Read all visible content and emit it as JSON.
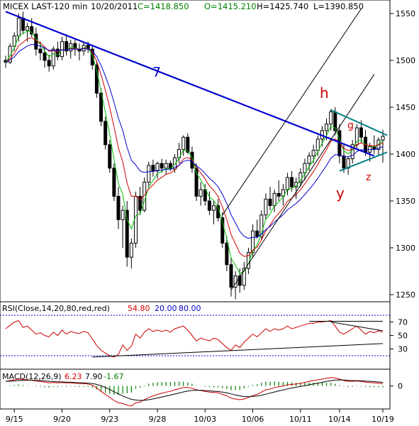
{
  "chart_data": {
    "type": "candlestick",
    "header": {
      "symbol": "MICEX LAST-120 min",
      "date": "10/20/2011",
      "close": "C=1418.850",
      "open": "O=1415.210",
      "high": "H=1425.740",
      "low": "L=1390.850"
    },
    "price_axis": {
      "ticks": [
        "1550",
        "1500",
        "1450",
        "1400",
        "1350",
        "1300",
        "1250"
      ],
      "ylim": [
        1238,
        1562
      ]
    },
    "x_ticks": [
      "9/15",
      "9/20",
      "9/23",
      "9/28",
      "10/03",
      "10/06",
      "10/11",
      "10/14",
      "10/19"
    ],
    "annotations": [
      "7",
      "h",
      "g",
      "y",
      "z"
    ],
    "colors": {
      "bull": "#000000",
      "bear": "#000000",
      "trend": "#0000d0",
      "ma_fast": "#00c000",
      "ma_mid": "#d00000",
      "ma_slow": "#0000d0",
      "triangle": "#008080",
      "label": "#d00000"
    },
    "candles": [
      [
        1500,
        1505,
        1492,
        1498
      ],
      [
        1498,
        1518,
        1496,
        1515
      ],
      [
        1515,
        1530,
        1510,
        1526
      ],
      [
        1526,
        1550,
        1520,
        1545
      ],
      [
        1545,
        1552,
        1528,
        1532
      ],
      [
        1532,
        1540,
        1520,
        1536
      ],
      [
        1536,
        1545,
        1525,
        1528
      ],
      [
        1528,
        1535,
        1505,
        1512
      ],
      [
        1512,
        1520,
        1500,
        1508
      ],
      [
        1508,
        1515,
        1492,
        1500
      ],
      [
        1500,
        1506,
        1488,
        1494
      ],
      [
        1494,
        1515,
        1490,
        1512
      ],
      [
        1512,
        1520,
        1500,
        1504
      ],
      [
        1504,
        1525,
        1500,
        1520
      ],
      [
        1520,
        1528,
        1505,
        1510
      ],
      [
        1510,
        1522,
        1502,
        1518
      ],
      [
        1518,
        1522,
        1505,
        1512
      ],
      [
        1512,
        1518,
        1500,
        1510
      ],
      [
        1510,
        1520,
        1505,
        1516
      ],
      [
        1516,
        1520,
        1508,
        1512
      ],
      [
        1512,
        1516,
        1490,
        1495
      ],
      [
        1495,
        1500,
        1460,
        1465
      ],
      [
        1465,
        1470,
        1430,
        1435
      ],
      [
        1435,
        1440,
        1405,
        1410
      ],
      [
        1410,
        1415,
        1380,
        1385
      ],
      [
        1385,
        1390,
        1350,
        1355
      ],
      [
        1355,
        1365,
        1320,
        1330
      ],
      [
        1330,
        1345,
        1300,
        1340
      ],
      [
        1340,
        1350,
        1280,
        1290
      ],
      [
        1290,
        1310,
        1278,
        1305
      ],
      [
        1305,
        1360,
        1300,
        1355
      ],
      [
        1355,
        1365,
        1335,
        1340
      ],
      [
        1340,
        1375,
        1338,
        1370
      ],
      [
        1370,
        1392,
        1365,
        1388
      ],
      [
        1388,
        1394,
        1376,
        1382
      ],
      [
        1382,
        1392,
        1374,
        1390
      ],
      [
        1390,
        1395,
        1380,
        1385
      ],
      [
        1385,
        1394,
        1378,
        1390
      ],
      [
        1390,
        1393,
        1382,
        1384
      ],
      [
        1384,
        1400,
        1380,
        1396
      ],
      [
        1396,
        1412,
        1390,
        1405
      ],
      [
        1405,
        1420,
        1398,
        1418
      ],
      [
        1418,
        1422,
        1400,
        1402
      ],
      [
        1402,
        1408,
        1380,
        1385
      ],
      [
        1385,
        1390,
        1350,
        1355
      ],
      [
        1355,
        1370,
        1345,
        1362
      ],
      [
        1362,
        1368,
        1345,
        1350
      ],
      [
        1350,
        1360,
        1335,
        1340
      ],
      [
        1340,
        1350,
        1325,
        1345
      ],
      [
        1345,
        1352,
        1328,
        1332
      ],
      [
        1332,
        1338,
        1300,
        1305
      ],
      [
        1305,
        1312,
        1275,
        1282
      ],
      [
        1282,
        1290,
        1248,
        1258
      ],
      [
        1258,
        1275,
        1245,
        1270
      ],
      [
        1270,
        1278,
        1252,
        1260
      ],
      [
        1260,
        1285,
        1255,
        1278
      ],
      [
        1278,
        1300,
        1272,
        1295
      ],
      [
        1295,
        1325,
        1290,
        1318
      ],
      [
        1318,
        1330,
        1310,
        1312
      ],
      [
        1312,
        1340,
        1308,
        1335
      ],
      [
        1335,
        1358,
        1330,
        1352
      ],
      [
        1352,
        1365,
        1340,
        1345
      ],
      [
        1345,
        1362,
        1338,
        1358
      ],
      [
        1358,
        1372,
        1350,
        1355
      ],
      [
        1355,
        1368,
        1345,
        1362
      ],
      [
        1362,
        1380,
        1356,
        1375
      ],
      [
        1375,
        1382,
        1360,
        1365
      ],
      [
        1365,
        1375,
        1352,
        1370
      ],
      [
        1370,
        1385,
        1365,
        1380
      ],
      [
        1380,
        1395,
        1372,
        1390
      ],
      [
        1390,
        1402,
        1382,
        1398
      ],
      [
        1398,
        1410,
        1390,
        1404
      ],
      [
        1404,
        1420,
        1398,
        1416
      ],
      [
        1416,
        1430,
        1408,
        1425
      ],
      [
        1425,
        1438,
        1415,
        1432
      ],
      [
        1432,
        1448,
        1425,
        1445
      ],
      [
        1445,
        1450,
        1420,
        1425
      ],
      [
        1425,
        1432,
        1390,
        1398
      ],
      [
        1398,
        1410,
        1380,
        1385
      ],
      [
        1385,
        1398,
        1378,
        1395
      ],
      [
        1395,
        1415,
        1390,
        1410
      ],
      [
        1410,
        1432,
        1405,
        1428
      ],
      [
        1428,
        1436,
        1412,
        1418
      ],
      [
        1418,
        1426,
        1398,
        1402
      ],
      [
        1402,
        1412,
        1392,
        1408
      ],
      [
        1408,
        1420,
        1400,
        1405
      ],
      [
        1405,
        1418,
        1398,
        1415
      ],
      [
        1415,
        1426,
        1391,
        1419
      ]
    ],
    "rsi": {
      "label": "RSI(Close,14,20,80,red,red)",
      "value": "54.80",
      "lower": "20.00",
      "upper": "80.00",
      "ticks": [
        "70",
        "50",
        "30"
      ],
      "ylim": [
        0,
        100
      ],
      "values": [
        60,
        65,
        70,
        72,
        62,
        64,
        58,
        52,
        54,
        50,
        48,
        55,
        50,
        58,
        52,
        56,
        54,
        53,
        56,
        54,
        45,
        35,
        28,
        24,
        20,
        18,
        22,
        36,
        28,
        34,
        52,
        46,
        55,
        60,
        56,
        58,
        56,
        58,
        55,
        60,
        62,
        64,
        58,
        50,
        42,
        46,
        44,
        42,
        46,
        44,
        38,
        32,
        28,
        36,
        32,
        40,
        46,
        52,
        48,
        54,
        60,
        56,
        60,
        58,
        60,
        64,
        60,
        62,
        64,
        66,
        68,
        68,
        70,
        70,
        71,
        72,
        64,
        55,
        52,
        56,
        60,
        64,
        58,
        52,
        56,
        54,
        57,
        55
      ]
    },
    "macd": {
      "label": "MACD(12,26,9)",
      "macd_value": "6.23",
      "signal_value": "7.90",
      "hist_value": "-1.67",
      "ticks": [
        "0"
      ],
      "ylim": [
        -60,
        40
      ],
      "macd": [
        12,
        14,
        16,
        18,
        17,
        16,
        15,
        13,
        12,
        10,
        8,
        9,
        8,
        9,
        8,
        8,
        7,
        6,
        6,
        5,
        2,
        -5,
        -14,
        -22,
        -30,
        -38,
        -44,
        -46,
        -50,
        -52,
        -44,
        -42,
        -36,
        -30,
        -26,
        -22,
        -19,
        -16,
        -14,
        -10,
        -7,
        -4,
        -4,
        -6,
        -10,
        -12,
        -14,
        -16,
        -17,
        -18,
        -22,
        -26,
        -32,
        -34,
        -36,
        -34,
        -30,
        -25,
        -22,
        -16,
        -10,
        -8,
        -4,
        -2,
        0,
        3,
        4,
        5,
        7,
        9,
        12,
        14,
        16,
        18,
        20,
        22,
        21,
        18,
        14,
        12,
        12,
        13,
        12,
        10,
        9,
        8,
        7,
        6
      ]
    },
    "series_ma": [
      "fast",
      "mid",
      "slow"
    ]
  }
}
